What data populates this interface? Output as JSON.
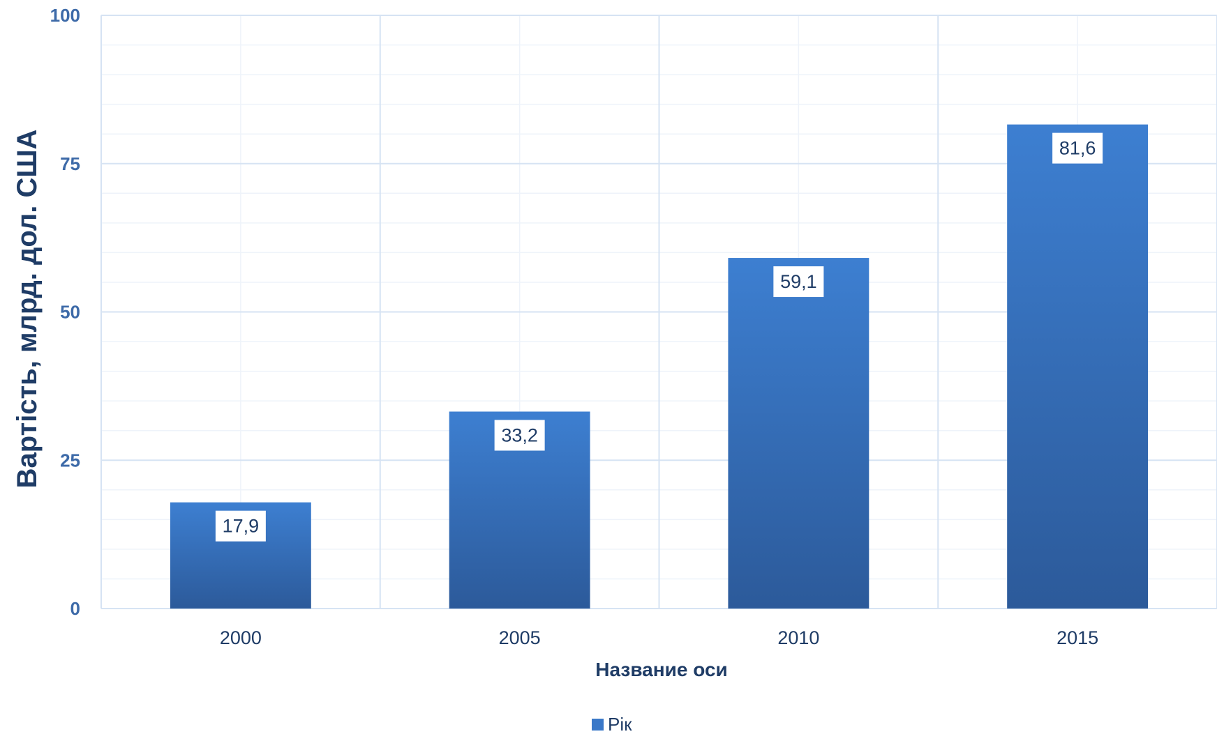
{
  "chart_data": {
    "type": "bar",
    "categories": [
      "2000",
      "2005",
      "2010",
      "2015"
    ],
    "series": [
      {
        "name": "Рік",
        "values": [
          17.9,
          33.2,
          59.1,
          81.6
        ],
        "data_labels": [
          "17,9",
          "33,2",
          "59,1",
          "81,6"
        ]
      }
    ],
    "title": "",
    "xlabel": "Название оси",
    "ylabel": "Вартість, млрд. дол. США",
    "ylim": [
      0,
      100
    ],
    "yticks": [
      "0",
      "25",
      "50",
      "75",
      "100"
    ],
    "grid": true,
    "legend_position": "bottom",
    "colors": {
      "bar_top": "#3d7fd1",
      "bar_bottom": "#2c5a9a",
      "grid_major": "#d6e3f3",
      "grid_minor": "#eef3fa",
      "tick_y": "#3d6aa8",
      "text_dark": "#1f3c66",
      "legend_swatch": "#3a78c8"
    }
  }
}
